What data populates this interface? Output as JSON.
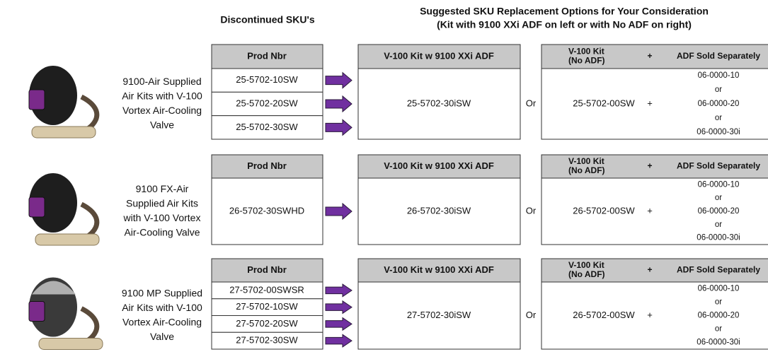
{
  "header": {
    "discontinued": "Discontinued SKU's",
    "suggested_title": "Suggested SKU Replacement Options for Your Consideration",
    "suggested_subtitle": "(Kit with 9100 XXi ADF on left or with No ADF on right)"
  },
  "groups": [
    {
      "description_lines": [
        "9100-Air Supplied",
        "Air Kits with V-100",
        "Vortex Air-Cooling",
        "Valve"
      ],
      "prod_header": "Prod Nbr",
      "discontinued_skus": [
        "25-5702-10SW",
        "25-5702-20SW",
        "25-5702-30SW"
      ],
      "kit_header": "V-100 Kit w 9100 XXi ADF",
      "kit_sku": "25-5702-30iSW",
      "or": "Or",
      "no_adf_header_lines": [
        "V-100 Kit",
        "(No ADF)"
      ],
      "plus_header": "+",
      "adf_header": "ADF Sold Separately",
      "no_adf_sku": "25-5702-00SW",
      "plus": "+",
      "adf_options": [
        "06-0000-10",
        "or",
        "06-0000-20",
        "or",
        "06-0000-30i"
      ]
    },
    {
      "description_lines": [
        "9100 FX-Air",
        "Supplied Air Kits",
        "with V-100 Vortex",
        "Air-Cooling Valve"
      ],
      "prod_header": "Prod Nbr",
      "discontinued_skus": [
        "26-5702-30SWHD"
      ],
      "kit_header": "V-100 Kit w 9100 XXi ADF",
      "kit_sku": "26-5702-30iSW",
      "or": "Or",
      "no_adf_header_lines": [
        "V-100 Kit",
        "(No ADF)"
      ],
      "plus_header": "+",
      "adf_header": "ADF Sold Separately",
      "no_adf_sku": "26-5702-00SW",
      "plus": "+",
      "adf_options": [
        "06-0000-10",
        "or",
        "06-0000-20",
        "or",
        "06-0000-30i"
      ]
    },
    {
      "description_lines": [
        "9100 MP Supplied",
        "Air Kits with V-100",
        "Vortex Air-Cooling",
        "Valve"
      ],
      "prod_header": "Prod Nbr",
      "discontinued_skus": [
        "27-5702-00SWSR",
        "27-5702-10SW",
        "27-5702-20SW",
        "27-5702-30SW"
      ],
      "kit_header": "V-100 Kit w 9100 XXi ADF",
      "kit_sku": "27-5702-30iSW",
      "or": "Or",
      "no_adf_header_lines": [
        "V-100 Kit",
        "(No ADF)"
      ],
      "plus_header": "+",
      "adf_header": "ADF Sold Separately",
      "no_adf_sku": "26-5702-00SW",
      "plus": "+",
      "adf_options": [
        "06-0000-10",
        "or",
        "06-0000-20",
        "or",
        "06-0000-30i"
      ]
    }
  ]
}
